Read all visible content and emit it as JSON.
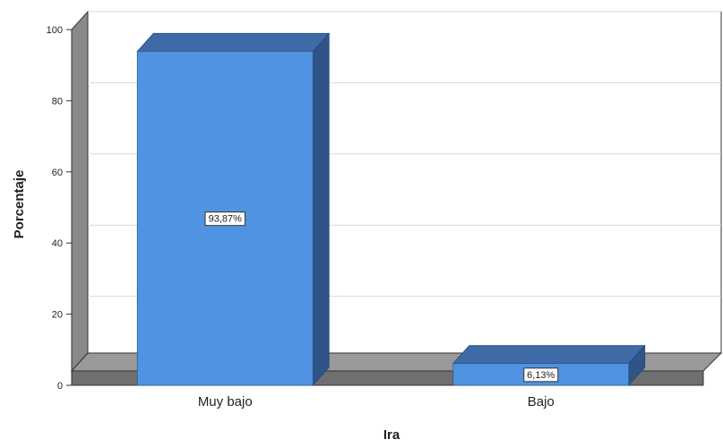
{
  "chart_data": {
    "type": "bar",
    "style": "3d",
    "categories": [
      "Muy bajo",
      "Bajo"
    ],
    "values": [
      93.87,
      6.13
    ],
    "data_labels": [
      "93,87%",
      "6,13%"
    ],
    "title": "",
    "xlabel": "Ira",
    "ylabel": "Porcentaje",
    "ylim": [
      0,
      100
    ],
    "yticks": [
      0,
      20,
      40,
      60,
      80,
      100
    ],
    "grid": true,
    "legend": "none"
  },
  "colors": {
    "bar_front": "#5093e0",
    "bar_top": "#3e6aa8",
    "bar_side": "#2f5488",
    "wall": "#ffffff",
    "wall_left": "#8a8a8a",
    "floor": "#6f6f6f",
    "grid": "#d9d9d9",
    "axis": "#333333"
  }
}
